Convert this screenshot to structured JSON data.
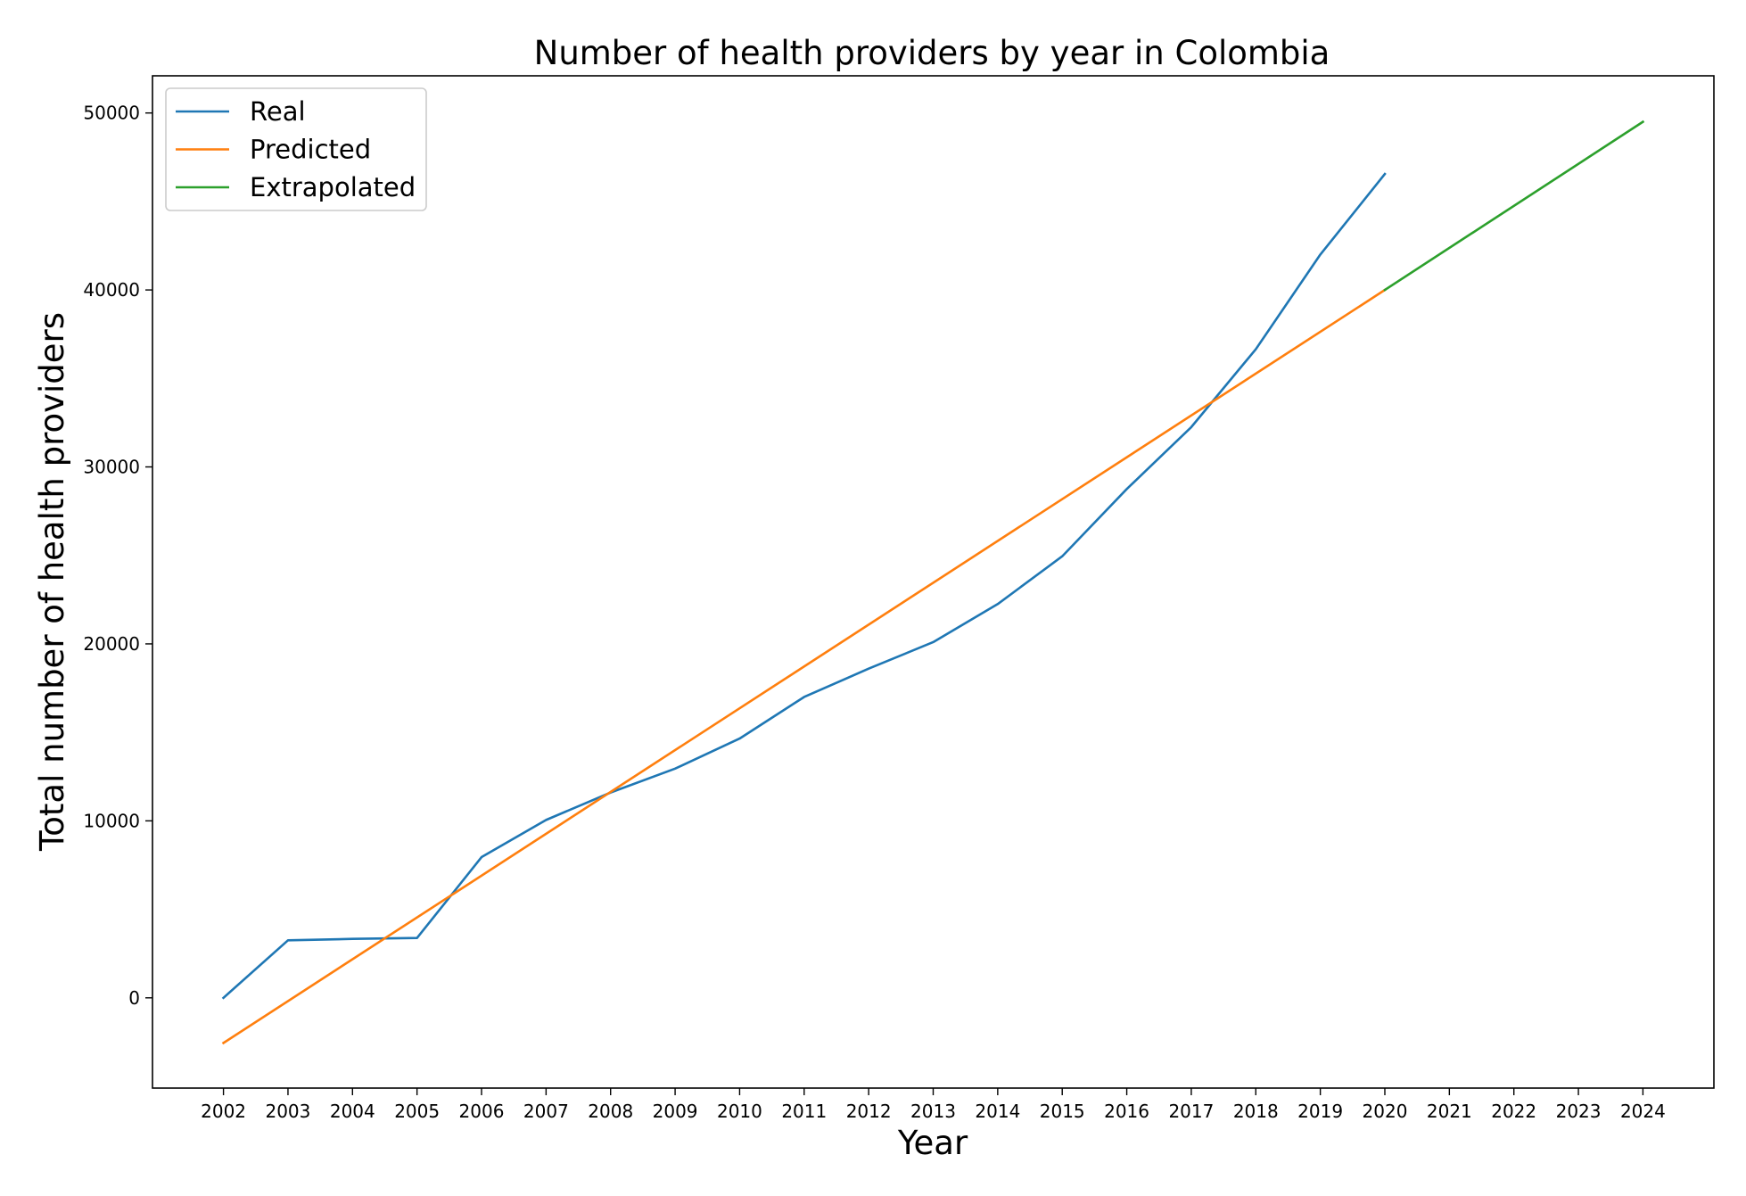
{
  "chart_data": {
    "type": "line",
    "title": "Number of health providers by year in Colombia",
    "xlabel": "Year",
    "ylabel": "Total number of health providers",
    "xlim": [
      2000.9,
      2025.1
    ],
    "ylim": [
      -5100,
      52100
    ],
    "xticks": [
      2002,
      2003,
      2004,
      2005,
      2006,
      2007,
      2008,
      2009,
      2010,
      2011,
      2012,
      2013,
      2014,
      2015,
      2016,
      2017,
      2018,
      2019,
      2020,
      2021,
      2022,
      2023,
      2024
    ],
    "yticks": [
      0,
      10000,
      20000,
      30000,
      40000,
      50000
    ],
    "grid": false,
    "legend_position": "top-left",
    "series": [
      {
        "name": "Real",
        "color": "#1f77b4",
        "x": [
          2002,
          2003,
          2004,
          2005,
          2006,
          2007,
          2008,
          2009,
          2010,
          2011,
          2012,
          2013,
          2014,
          2015,
          2016,
          2017,
          2018,
          2019,
          2020
        ],
        "y": [
          0,
          3250,
          3330,
          3380,
          7950,
          10050,
          11600,
          12950,
          14650,
          17000,
          18600,
          20100,
          22250,
          24950,
          28750,
          32250,
          36650,
          42000,
          46550
        ]
      },
      {
        "name": "Predicted",
        "color": "#ff7f0e",
        "x": [
          2002,
          2020
        ],
        "y": [
          -2550,
          40000
        ]
      },
      {
        "name": "Extrapolated",
        "color": "#2ca02c",
        "x": [
          2020,
          2024
        ],
        "y": [
          40000,
          49500
        ]
      }
    ]
  }
}
